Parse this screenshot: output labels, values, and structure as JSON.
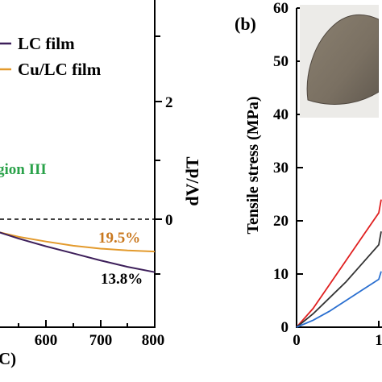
{
  "panel_b_label": "(b)",
  "colors": {
    "lc_film": "#3d1f5a",
    "cu_lc_film": "#e39a2c",
    "region_text": "#2aa24a",
    "pct_lc": "#000000",
    "pct_cu": "#c9781f",
    "red_curve": "#e02020",
    "dark_curve": "#333333",
    "blue_curve": "#2a6fd0",
    "photo_film": "#7d7366"
  },
  "chart_data": [
    {
      "type": "line",
      "panel": "a",
      "title": "",
      "xlabel": "C)",
      "ylabel_right": "dV/dT",
      "xlim": [
        450,
        800
      ],
      "x_ticks": [
        "600",
        "700",
        "800"
      ],
      "y_right_ticks": [
        "2",
        "0"
      ],
      "legend": [
        "LC film",
        "Cu/LC film"
      ],
      "region_label": "gion III",
      "annotations": [
        "19.5%",
        "13.8%"
      ],
      "series": [
        {
          "name": "LC film",
          "x": [
            450,
            500,
            550,
            600,
            650,
            700,
            750,
            800
          ],
          "y": [
            -0.03,
            -0.18,
            -0.33,
            -0.46,
            -0.58,
            -0.7,
            -0.81,
            -0.9
          ]
        },
        {
          "name": "Cu/LC film",
          "x": [
            450,
            500,
            550,
            600,
            650,
            700,
            750,
            800
          ],
          "y": [
            -0.05,
            -0.19,
            -0.3,
            -0.38,
            -0.45,
            -0.5,
            -0.53,
            -0.55
          ]
        }
      ]
    },
    {
      "type": "line",
      "panel": "b",
      "title": "",
      "ylabel": "Tensile stress (MPa)",
      "ylim": [
        0,
        60
      ],
      "y_ticks": [
        "0",
        "10",
        "20",
        "30",
        "40",
        "50",
        "60"
      ],
      "x_ticks": [
        "0",
        "1"
      ],
      "series": [
        {
          "x": [
            0,
            0.2,
            0.4,
            0.6,
            0.8,
            1.0,
            1.1
          ],
          "y": [
            0,
            3.5,
            8,
            12.5,
            17,
            21.5,
            24
          ]
        },
        {
          "x": [
            0,
            0.2,
            0.4,
            0.6,
            0.8,
            1.0,
            1.1
          ],
          "y": [
            0,
            2.5,
            5.5,
            8.5,
            12,
            15.5,
            18
          ]
        },
        {
          "x": [
            0,
            0.2,
            0.4,
            0.6,
            0.8,
            1.0,
            1.1
          ],
          "y": [
            0,
            1.3,
            3,
            5,
            7,
            9,
            10.5
          ]
        }
      ]
    }
  ]
}
